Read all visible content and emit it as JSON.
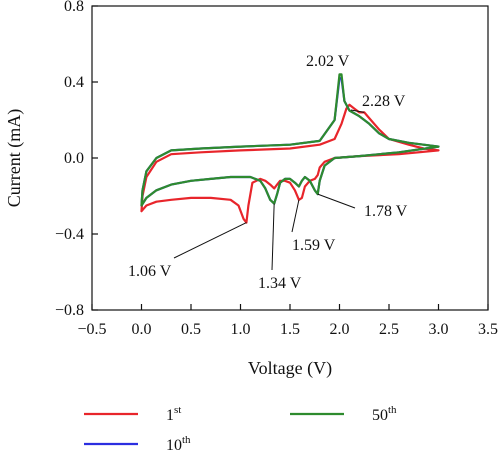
{
  "chart_data": {
    "type": "line",
    "title": "",
    "xlabel": "Voltage (V)",
    "ylabel": "Current (mA)",
    "xlim": [
      -0.5,
      3.5
    ],
    "ylim": [
      -0.8,
      0.8
    ],
    "x_ticks": [
      "−0.5",
      "0.0",
      "0.5",
      "1.0",
      "1.5",
      "2.0",
      "2.5",
      "3.0",
      "3.5"
    ],
    "y_ticks": [
      "0.8",
      "0.4",
      "0.0",
      "−0.4",
      "−0.8"
    ],
    "x_tick_values": [
      -0.5,
      0.0,
      0.5,
      1.0,
      1.5,
      2.0,
      2.5,
      3.0,
      3.5
    ],
    "y_tick_values": [
      0.8,
      0.4,
      0.0,
      -0.4,
      -0.8
    ],
    "grid": false,
    "legend_position": "bottom",
    "series": [
      {
        "name_base": "1",
        "name_sup": "st",
        "color": "#e8252b",
        "cathodic": [
          [
            3.0,
            0.04
          ],
          [
            2.6,
            0.02
          ],
          [
            2.2,
            0.01
          ],
          [
            1.95,
            0.0
          ],
          [
            1.85,
            -0.02
          ],
          [
            1.8,
            -0.05
          ],
          [
            1.78,
            -0.09
          ],
          [
            1.75,
            -0.11
          ],
          [
            1.7,
            -0.12
          ],
          [
            1.65,
            -0.15
          ],
          [
            1.62,
            -0.21
          ],
          [
            1.59,
            -0.22
          ],
          [
            1.55,
            -0.17
          ],
          [
            1.5,
            -0.13
          ],
          [
            1.45,
            -0.12
          ],
          [
            1.4,
            -0.12
          ],
          [
            1.37,
            -0.14
          ],
          [
            1.34,
            -0.16
          ],
          [
            1.3,
            -0.14
          ],
          [
            1.25,
            -0.12
          ],
          [
            1.2,
            -0.11
          ],
          [
            1.12,
            -0.13
          ],
          [
            1.08,
            -0.25
          ],
          [
            1.06,
            -0.34
          ],
          [
            1.03,
            -0.32
          ],
          [
            0.98,
            -0.25
          ],
          [
            0.9,
            -0.22
          ],
          [
            0.7,
            -0.21
          ],
          [
            0.5,
            -0.21
          ],
          [
            0.3,
            -0.22
          ],
          [
            0.15,
            -0.23
          ],
          [
            0.05,
            -0.25
          ],
          [
            0.0,
            -0.28
          ]
        ],
        "anodic": [
          [
            0.0,
            -0.28
          ],
          [
            0.01,
            -0.2
          ],
          [
            0.05,
            -0.1
          ],
          [
            0.15,
            -0.02
          ],
          [
            0.3,
            0.02
          ],
          [
            0.6,
            0.03
          ],
          [
            1.0,
            0.04
          ],
          [
            1.5,
            0.05
          ],
          [
            1.8,
            0.07
          ],
          [
            1.95,
            0.1
          ],
          [
            2.02,
            0.18
          ],
          [
            2.07,
            0.26
          ],
          [
            2.1,
            0.28
          ],
          [
            2.15,
            0.26
          ],
          [
            2.2,
            0.24
          ],
          [
            2.25,
            0.24
          ],
          [
            2.3,
            0.21
          ],
          [
            2.4,
            0.15
          ],
          [
            2.5,
            0.1
          ],
          [
            2.7,
            0.07
          ],
          [
            2.85,
            0.05
          ],
          [
            3.0,
            0.04
          ]
        ]
      },
      {
        "name_base": "10",
        "name_sup": "th",
        "color": "#2b2ee0",
        "cathodic": [
          [
            3.0,
            0.06
          ],
          [
            2.6,
            0.03
          ],
          [
            2.2,
            0.01
          ],
          [
            1.95,
            0.0
          ],
          [
            1.85,
            -0.04
          ],
          [
            1.8,
            -0.12
          ],
          [
            1.78,
            -0.19
          ],
          [
            1.75,
            -0.17
          ],
          [
            1.7,
            -0.12
          ],
          [
            1.65,
            -0.1
          ],
          [
            1.62,
            -0.12
          ],
          [
            1.59,
            -0.15
          ],
          [
            1.55,
            -0.13
          ],
          [
            1.5,
            -0.11
          ],
          [
            1.45,
            -0.11
          ],
          [
            1.4,
            -0.13
          ],
          [
            1.37,
            -0.19
          ],
          [
            1.34,
            -0.24
          ],
          [
            1.3,
            -0.22
          ],
          [
            1.25,
            -0.16
          ],
          [
            1.2,
            -0.12
          ],
          [
            1.1,
            -0.1
          ],
          [
            0.9,
            -0.1
          ],
          [
            0.7,
            -0.11
          ],
          [
            0.5,
            -0.12
          ],
          [
            0.3,
            -0.14
          ],
          [
            0.15,
            -0.17
          ],
          [
            0.05,
            -0.21
          ],
          [
            0.0,
            -0.25
          ]
        ],
        "anodic": [
          [
            0.0,
            -0.25
          ],
          [
            0.01,
            -0.17
          ],
          [
            0.05,
            -0.07
          ],
          [
            0.15,
            0.0
          ],
          [
            0.3,
            0.04
          ],
          [
            0.6,
            0.05
          ],
          [
            1.0,
            0.06
          ],
          [
            1.5,
            0.07
          ],
          [
            1.8,
            0.09
          ],
          [
            1.95,
            0.2
          ],
          [
            2.0,
            0.42
          ],
          [
            2.02,
            0.42
          ],
          [
            2.05,
            0.3
          ],
          [
            2.1,
            0.25
          ],
          [
            2.2,
            0.22
          ],
          [
            2.25,
            0.2
          ],
          [
            2.3,
            0.18
          ],
          [
            2.4,
            0.13
          ],
          [
            2.5,
            0.1
          ],
          [
            2.7,
            0.08
          ],
          [
            2.85,
            0.07
          ],
          [
            3.0,
            0.06
          ]
        ]
      },
      {
        "name_base": "50",
        "name_sup": "th",
        "color": "#2e8b2e",
        "cathodic": [
          [
            3.0,
            0.06
          ],
          [
            2.6,
            0.03
          ],
          [
            2.2,
            0.01
          ],
          [
            1.95,
            0.0
          ],
          [
            1.85,
            -0.04
          ],
          [
            1.8,
            -0.12
          ],
          [
            1.78,
            -0.19
          ],
          [
            1.75,
            -0.17
          ],
          [
            1.7,
            -0.12
          ],
          [
            1.65,
            -0.1
          ],
          [
            1.62,
            -0.12
          ],
          [
            1.59,
            -0.15
          ],
          [
            1.55,
            -0.13
          ],
          [
            1.5,
            -0.11
          ],
          [
            1.45,
            -0.11
          ],
          [
            1.4,
            -0.13
          ],
          [
            1.37,
            -0.19
          ],
          [
            1.34,
            -0.24
          ],
          [
            1.3,
            -0.22
          ],
          [
            1.25,
            -0.16
          ],
          [
            1.2,
            -0.12
          ],
          [
            1.1,
            -0.1
          ],
          [
            0.9,
            -0.1
          ],
          [
            0.7,
            -0.11
          ],
          [
            0.5,
            -0.12
          ],
          [
            0.3,
            -0.14
          ],
          [
            0.15,
            -0.17
          ],
          [
            0.05,
            -0.21
          ],
          [
            0.0,
            -0.25
          ]
        ],
        "anodic": [
          [
            0.0,
            -0.25
          ],
          [
            0.01,
            -0.17
          ],
          [
            0.05,
            -0.07
          ],
          [
            0.15,
            0.0
          ],
          [
            0.3,
            0.04
          ],
          [
            0.6,
            0.05
          ],
          [
            1.0,
            0.06
          ],
          [
            1.5,
            0.07
          ],
          [
            1.8,
            0.09
          ],
          [
            1.95,
            0.2
          ],
          [
            2.0,
            0.44
          ],
          [
            2.02,
            0.44
          ],
          [
            2.05,
            0.3
          ],
          [
            2.1,
            0.25
          ],
          [
            2.2,
            0.22
          ],
          [
            2.25,
            0.2
          ],
          [
            2.3,
            0.18
          ],
          [
            2.4,
            0.13
          ],
          [
            2.5,
            0.1
          ],
          [
            2.7,
            0.08
          ],
          [
            2.85,
            0.07
          ],
          [
            3.0,
            0.06
          ]
        ]
      }
    ],
    "annotations": [
      {
        "text": "2.02 V",
        "point": [
          2.0,
          0.44
        ]
      },
      {
        "text": "2.28 V",
        "point": [
          2.25,
          0.24
        ]
      },
      {
        "text": "1.78 V",
        "point": [
          1.78,
          -0.19
        ]
      },
      {
        "text": "1.59 V",
        "point": [
          1.59,
          -0.22
        ]
      },
      {
        "text": "1.34 V",
        "point": [
          1.34,
          -0.24
        ]
      },
      {
        "text": "1.06 V",
        "point": [
          1.06,
          -0.34
        ]
      }
    ]
  }
}
